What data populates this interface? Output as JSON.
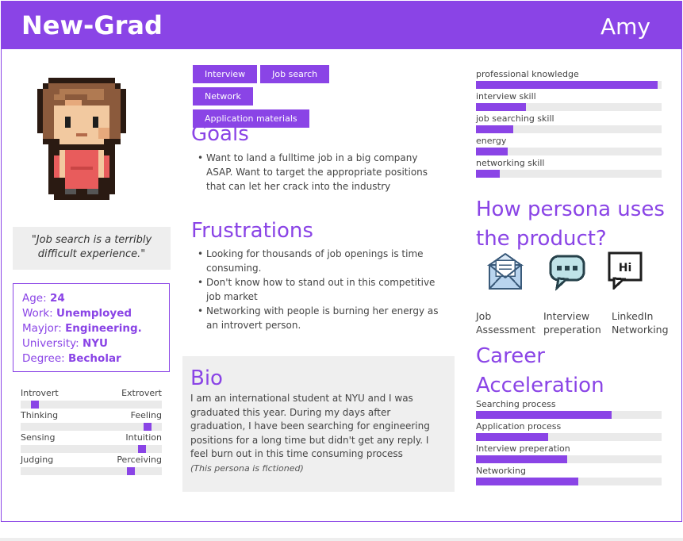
{
  "header": {
    "title": "New-Grad",
    "username": "Amy"
  },
  "colors": {
    "accent": "#8a44e6",
    "panel": "#eeeeee",
    "track": "#eaeaea"
  },
  "quote": "\"Job search is a terribly difficult experience.\"",
  "info": {
    "age_label": "Age: ",
    "age": "24",
    "work_label": "Work: ",
    "work": "Unemployed",
    "major_label": "Mayjor: ",
    "major": "Engineering.",
    "university_label": "University: ",
    "university": "NYU",
    "degree_label": "Degree: ",
    "degree": "Becholar"
  },
  "traits": [
    {
      "left": "Introvert",
      "right": "Extrovert",
      "value": 0.1
    },
    {
      "left": "Thinking",
      "right": "Feeling",
      "value": 0.9
    },
    {
      "left": "Sensing",
      "right": "Intuition",
      "value": 0.86
    },
    {
      "left": "Judging",
      "right": "Perceiving",
      "value": 0.78
    }
  ],
  "tags": [
    "Interview",
    "Job search",
    "Network",
    "Application materials"
  ],
  "goals": {
    "title": "Goals",
    "items": [
      "Want to land a fulltime job in a big company ASAP. Want to target the appropriate positions that can let her crack into the industry"
    ]
  },
  "frustrations": {
    "title": "Frustrations",
    "items": [
      "Looking for thousands of job openings is time consuming.",
      "Don't know how to stand out in this competitive job market",
      "Networking with people is burning her energy as an introvert person."
    ]
  },
  "bio": {
    "title": "Bio",
    "text": "I am an international student at NYU and I was graduated this year. During my days after graduation, I have been searching for engineering positions for a long time but didn't get any reply. I feel burn out in this time consuming process",
    "note": "(This persona is fictioned)"
  },
  "skills": [
    {
      "label": "professional knowledge",
      "value": 0.98
    },
    {
      "label": "interview skill",
      "value": 0.27
    },
    {
      "label": "job searching skill",
      "value": 0.2
    },
    {
      "label": "energy",
      "value": 0.17
    },
    {
      "label": "networking skill",
      "value": 0.13
    }
  ],
  "uses": {
    "title_line1": "How persona uses",
    "title_line2": "the product?",
    "items": [
      {
        "icon": "envelope-icon",
        "line1": "Job",
        "line2": "Assessment"
      },
      {
        "icon": "chat-bubble-icon",
        "line1": "Interview",
        "line2": "preperation"
      },
      {
        "icon": "hi-bubble-icon",
        "line1": "LinkedIn",
        "line2": "Networking",
        "icon_text": "Hi"
      }
    ]
  },
  "career": {
    "title_line1": "Career",
    "title_line2": "Acceleration",
    "items": [
      {
        "label": "Searching process",
        "value": 0.73
      },
      {
        "label": "Application process",
        "value": 0.39
      },
      {
        "label": "Interview preperation",
        "value": 0.49
      },
      {
        "label": "Networking",
        "value": 0.55
      }
    ]
  }
}
